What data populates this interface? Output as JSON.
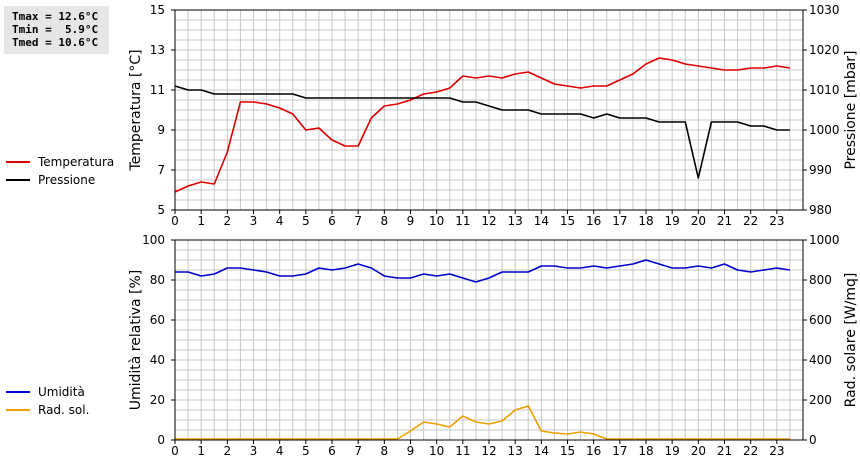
{
  "stats": {
    "lines": [
      "Tmax = 12.6°C",
      "Tmin =  5.9°C",
      "Tmed = 10.6°C"
    ]
  },
  "colors": {
    "temperature": "#dd0000",
    "pressure": "#000000",
    "humidity": "#0000cc",
    "solar": "#f0a000",
    "grid": "#c8c8c8"
  },
  "chart_data": [
    {
      "type": "line",
      "xlabel": "",
      "ylabel_left": "Temperatura [°C]",
      "ylabel_right": "Pressione [mbar]",
      "x_ticks": [
        "0",
        "1",
        "2",
        "3",
        "4",
        "5",
        "6",
        "7",
        "8",
        "9",
        "10",
        "11",
        "12",
        "13",
        "14",
        "15",
        "16",
        "17",
        "18",
        "19",
        "20",
        "21",
        "22",
        "23"
      ],
      "xlim": [
        0,
        24
      ],
      "ylim_left": [
        5,
        15
      ],
      "ylim_right": [
        980,
        1030
      ],
      "y_ticks_left": [
        "5",
        "7",
        "9",
        "11",
        "13",
        "15"
      ],
      "y_ticks_right": [
        "980",
        "990",
        "1000",
        "1010",
        "1020",
        "1030"
      ],
      "grid": true,
      "legend_position": "left-outside",
      "series": [
        {
          "name": "Temperatura",
          "axis": "left",
          "color": "#dd0000",
          "x": [
            0,
            0.5,
            1,
            1.5,
            2,
            2.5,
            3,
            3.5,
            4,
            4.5,
            5,
            5.5,
            6,
            6.5,
            7,
            7.5,
            8,
            8.5,
            9,
            9.5,
            10,
            10.5,
            11,
            11.5,
            12,
            12.5,
            13,
            13.5,
            14,
            14.5,
            15,
            15.5,
            16,
            16.5,
            17,
            17.5,
            18,
            18.5,
            19,
            19.5,
            20,
            20.5,
            21,
            21.5,
            22,
            22.5,
            23,
            23.5
          ],
          "values": [
            5.9,
            6.2,
            6.4,
            6.3,
            7.9,
            10.4,
            10.4,
            10.3,
            10.1,
            9.8,
            9.0,
            9.1,
            8.5,
            8.2,
            8.2,
            9.6,
            10.2,
            10.3,
            10.5,
            10.8,
            10.9,
            11.1,
            11.7,
            11.6,
            11.7,
            11.6,
            11.8,
            11.9,
            11.6,
            11.3,
            11.2,
            11.1,
            11.2,
            11.2,
            11.5,
            11.8,
            12.3,
            12.6,
            12.5,
            12.3,
            12.2,
            12.1,
            12.0,
            12.0,
            12.1,
            12.1,
            12.2,
            12.1
          ]
        },
        {
          "name": "Pressione",
          "axis": "right",
          "color": "#000000",
          "x": [
            0,
            0.5,
            1,
            1.5,
            2,
            2.5,
            3,
            3.5,
            4,
            4.5,
            5,
            5.5,
            6,
            6.5,
            7,
            7.5,
            8,
            8.5,
            9,
            9.5,
            10,
            10.5,
            11,
            11.5,
            12,
            12.5,
            13,
            13.5,
            14,
            14.5,
            15,
            15.5,
            16,
            16.5,
            17,
            17.5,
            18,
            18.5,
            19,
            19.5,
            20,
            20.5,
            21,
            21.5,
            22,
            22.5,
            23,
            23.5
          ],
          "values": [
            1011,
            1010,
            1010,
            1009,
            1009,
            1009,
            1009,
            1009,
            1009,
            1009,
            1008,
            1008,
            1008,
            1008,
            1008,
            1008,
            1008,
            1008,
            1008,
            1008,
            1008,
            1008,
            1007,
            1007,
            1006,
            1005,
            1005,
            1005,
            1004,
            1004,
            1004,
            1004,
            1003,
            1004,
            1003,
            1003,
            1003,
            1002,
            1002,
            1002,
            988,
            1002,
            1002,
            1002,
            1001,
            1001,
            1000,
            1000
          ]
        }
      ]
    },
    {
      "type": "line",
      "xlabel": "",
      "ylabel_left": "Umidità relativa [%]",
      "ylabel_right": "Rad. solare [W/mq]",
      "x_ticks": [
        "0",
        "1",
        "2",
        "3",
        "4",
        "5",
        "6",
        "7",
        "8",
        "9",
        "10",
        "11",
        "12",
        "13",
        "14",
        "15",
        "16",
        "17",
        "18",
        "19",
        "20",
        "21",
        "22",
        "23"
      ],
      "xlim": [
        0,
        24
      ],
      "ylim_left": [
        0,
        100
      ],
      "ylim_right": [
        0,
        1000
      ],
      "y_ticks_left": [
        "0",
        "20",
        "40",
        "60",
        "80",
        "100"
      ],
      "y_ticks_right": [
        "0",
        "200",
        "400",
        "600",
        "800",
        "1000"
      ],
      "grid": true,
      "legend_position": "left-outside",
      "series": [
        {
          "name": "Umidità",
          "axis": "left",
          "color": "#0000cc",
          "x": [
            0,
            0.5,
            1,
            1.5,
            2,
            2.5,
            3,
            3.5,
            4,
            4.5,
            5,
            5.5,
            6,
            6.5,
            7,
            7.5,
            8,
            8.5,
            9,
            9.5,
            10,
            10.5,
            11,
            11.5,
            12,
            12.5,
            13,
            13.5,
            14,
            14.5,
            15,
            15.5,
            16,
            16.5,
            17,
            17.5,
            18,
            18.5,
            19,
            19.5,
            20,
            20.5,
            21,
            21.5,
            22,
            22.5,
            23,
            23.5
          ],
          "values": [
            84,
            84,
            82,
            83,
            86,
            86,
            85,
            84,
            82,
            82,
            83,
            86,
            85,
            86,
            88,
            86,
            82,
            81,
            81,
            83,
            82,
            83,
            81,
            79,
            81,
            84,
            84,
            84,
            87,
            87,
            86,
            86,
            87,
            86,
            87,
            88,
            90,
            88,
            86,
            86,
            87,
            86,
            88,
            85,
            84,
            85,
            86,
            85
          ]
        },
        {
          "name": "Rad. sol.",
          "axis": "right",
          "color": "#f0a000",
          "x": [
            0,
            0.5,
            1,
            1.5,
            2,
            2.5,
            3,
            3.5,
            4,
            4.5,
            5,
            5.5,
            6,
            6.5,
            7,
            7.5,
            8,
            8.5,
            9,
            9.5,
            10,
            10.5,
            11,
            11.5,
            12,
            12.5,
            13,
            13.5,
            14,
            14.5,
            15,
            15.5,
            16,
            16.5,
            17,
            17.5,
            18,
            18.5,
            19,
            19.5,
            20,
            20.5,
            21,
            21.5,
            22,
            22.5,
            23,
            23.5
          ],
          "values": [
            5,
            5,
            5,
            5,
            5,
            5,
            5,
            5,
            5,
            5,
            5,
            5,
            5,
            5,
            5,
            5,
            5,
            5,
            45,
            90,
            80,
            65,
            120,
            90,
            80,
            95,
            150,
            170,
            45,
            35,
            30,
            40,
            30,
            5,
            5,
            5,
            5,
            5,
            5,
            5,
            5,
            5,
            5,
            5,
            5,
            5,
            5,
            5
          ]
        }
      ]
    }
  ]
}
